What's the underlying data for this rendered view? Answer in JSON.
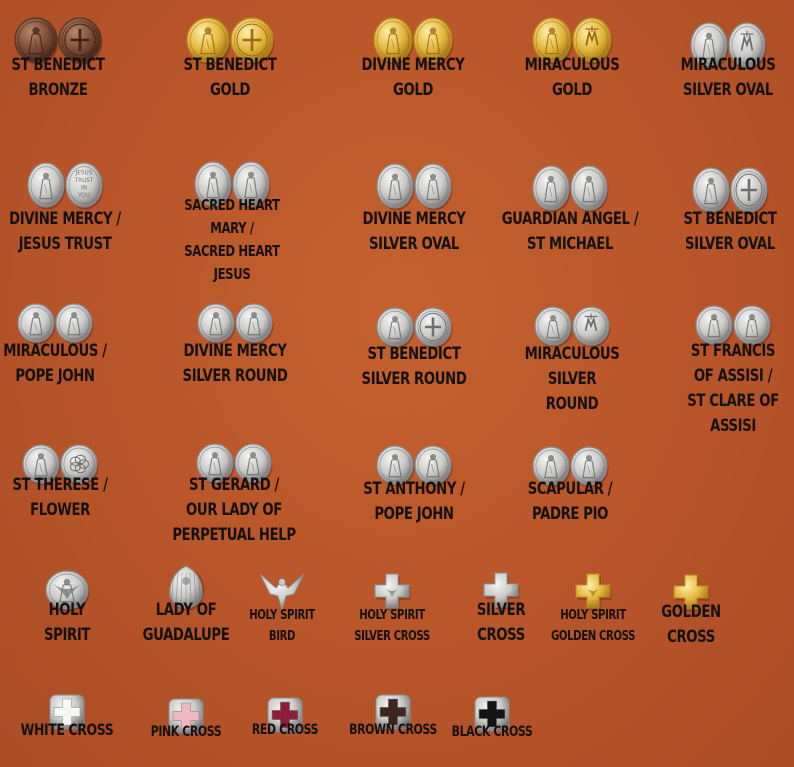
{
  "palette": {
    "background": "#b8552a",
    "silver": "#d9d9d9",
    "gold": "#e2b53c",
    "bronze": "#7a4a36",
    "white_enamel": "#f6f6f4",
    "pink_enamel": "#f2b6c2",
    "red_enamel": "#8d1e3a",
    "brown_enamel": "#3b2620",
    "black_enamel": "#141414"
  },
  "items": [
    {
      "lines": [
        "ST BENEDICT",
        "BRONZE"
      ],
      "kind": "pair",
      "finish": "bronze",
      "icons": [
        "st-benedict-medal-icon",
        "benedict-cross-medal-icon"
      ]
    },
    {
      "lines": [
        "ST BENEDICT",
        "GOLD"
      ],
      "kind": "pair",
      "finish": "gold",
      "icons": [
        "st-benedict-medal-icon",
        "benedict-cross-medal-icon"
      ]
    },
    {
      "lines": [
        "DIVINE MERCY",
        "GOLD"
      ],
      "kind": "pair",
      "finish": "gold",
      "icons": [
        "divine-mercy-medal-icon",
        "virgin-mary-medal-icon"
      ]
    },
    {
      "lines": [
        "MIRACULOUS",
        "GOLD"
      ],
      "kind": "pair",
      "finish": "gold",
      "icons": [
        "miraculous-medal-icon",
        "miraculous-reverse-medal-icon"
      ]
    },
    {
      "lines": [
        "MIRACULOUS",
        "SILVER OVAL"
      ],
      "kind": "pair",
      "finish": "silver",
      "icons": [
        "miraculous-medal-icon",
        "miraculous-reverse-medal-icon"
      ]
    },
    {
      "lines": [
        "DIVINE MERCY /",
        "JESUS TRUST"
      ],
      "kind": "pair",
      "finish": "silver",
      "icons": [
        "divine-mercy-medal-icon",
        "jesus-trust-text-medal-icon"
      ],
      "medal_text": [
        "JESUS",
        "TRUST",
        "IN",
        "YOU"
      ]
    },
    {
      "lines": [
        "SACRED HEART",
        "MARY /",
        "SACRED HEART",
        "JESUS"
      ],
      "kind": "pair",
      "finish": "silver",
      "icons": [
        "sacred-heart-mary-medal-icon",
        "sacred-heart-jesus-medal-icon"
      ]
    },
    {
      "lines": [
        "DIVINE MERCY",
        "SILVER OVAL"
      ],
      "kind": "pair",
      "finish": "silver",
      "icons": [
        "divine-mercy-medal-icon",
        "virgin-mary-medal-icon"
      ]
    },
    {
      "lines": [
        "GUARDIAN ANGEL /",
        "ST MICHAEL"
      ],
      "kind": "pair",
      "finish": "silver",
      "icons": [
        "guardian-angel-medal-icon",
        "st-michael-medal-icon"
      ]
    },
    {
      "lines": [
        "ST BENEDICT",
        "SILVER OVAL"
      ],
      "kind": "pair",
      "finish": "silver",
      "icons": [
        "st-benedict-medal-icon",
        "benedict-cross-medal-icon"
      ]
    },
    {
      "lines": [
        "MIRACULOUS /",
        "POPE JOHN"
      ],
      "kind": "pair",
      "finish": "silver",
      "icons": [
        "miraculous-medal-icon",
        "pope-john-medal-icon"
      ]
    },
    {
      "lines": [
        "DIVINE MERCY",
        "SILVER ROUND"
      ],
      "kind": "pair",
      "finish": "silver",
      "icons": [
        "divine-mercy-medal-icon",
        "virgin-mary-medal-icon"
      ]
    },
    {
      "lines": [
        "ST BENEDICT",
        "SILVER ROUND"
      ],
      "kind": "pair",
      "finish": "silver",
      "icons": [
        "st-benedict-medal-icon",
        "benedict-cross-medal-icon"
      ]
    },
    {
      "lines": [
        "MIRACULOUS",
        "SILVER",
        "ROUND"
      ],
      "kind": "pair",
      "finish": "silver",
      "icons": [
        "miraculous-medal-icon",
        "miraculous-reverse-medal-icon"
      ]
    },
    {
      "lines": [
        "ST FRANCIS",
        "OF ASSISI /",
        "ST CLARE OF",
        "ASSISI"
      ],
      "kind": "pair",
      "finish": "silver",
      "icons": [
        "st-francis-medal-icon",
        "st-clare-medal-icon"
      ]
    },
    {
      "lines": [
        "ST THERESE /",
        "FLOWER"
      ],
      "kind": "pair",
      "finish": "silver",
      "icons": [
        "st-therese-medal-icon",
        "rose-flower-medal-icon"
      ]
    },
    {
      "lines": [
        "ST GERARD /",
        "OUR LADY OF",
        "PERPETUAL HELP"
      ],
      "kind": "pair",
      "finish": "silver",
      "icons": [
        "st-gerard-medal-icon",
        "our-lady-perpetual-help-medal-icon"
      ]
    },
    {
      "lines": [
        "ST ANTHONY /",
        "POPE JOHN"
      ],
      "kind": "pair",
      "finish": "silver",
      "icons": [
        "st-anthony-medal-icon",
        "pope-john-medal-icon"
      ]
    },
    {
      "lines": [
        "SCAPULAR /",
        "PADRE PIO"
      ],
      "kind": "pair",
      "finish": "silver",
      "icons": [
        "scapular-medal-icon",
        "padre-pio-medal-icon"
      ]
    },
    {
      "lines": [
        "HOLY",
        "SPIRIT"
      ],
      "kind": "dove-medal",
      "finish": "silver",
      "icons": [
        "holy-spirit-dove-medal-icon"
      ]
    },
    {
      "lines": [
        "LADY OF",
        "GUADALUPE"
      ],
      "kind": "guadalupe",
      "finish": "silver",
      "icons": [
        "our-lady-guadalupe-bead-icon"
      ]
    },
    {
      "lines": [
        "HOLY SPIRIT",
        "BIRD"
      ],
      "kind": "dove",
      "finish": "silver",
      "icons": [
        "holy-spirit-bird-bead-icon"
      ]
    },
    {
      "lines": [
        "HOLY SPIRIT",
        "SILVER CROSS"
      ],
      "kind": "cross",
      "finish": "silver",
      "icons": [
        "holy-spirit-cross-bead-icon"
      ],
      "dove": true
    },
    {
      "lines": [
        "SILVER",
        "CROSS"
      ],
      "kind": "cross",
      "finish": "silver",
      "icons": [
        "silver-cross-bead-icon"
      ]
    },
    {
      "lines": [
        "HOLY SPIRIT",
        "GOLDEN CROSS"
      ],
      "kind": "cross",
      "finish": "gold",
      "icons": [
        "holy-spirit-golden-cross-bead-icon"
      ],
      "dove": true
    },
    {
      "lines": [
        "GOLDEN",
        "CROSS"
      ],
      "kind": "cross",
      "finish": "gold",
      "icons": [
        "golden-cross-bead-icon"
      ]
    },
    {
      "lines": [
        "WHITE CROSS"
      ],
      "kind": "enamel-cross",
      "finish": "white_enamel",
      "icons": [
        "white-cross-bead-icon"
      ]
    },
    {
      "lines": [
        "PINK CROSS"
      ],
      "kind": "enamel-cross",
      "finish": "pink_enamel",
      "icons": [
        "pink-cross-bead-icon"
      ]
    },
    {
      "lines": [
        "RED CROSS"
      ],
      "kind": "enamel-cross",
      "finish": "red_enamel",
      "icons": [
        "red-cross-bead-icon"
      ]
    },
    {
      "lines": [
        "BROWN CROSS"
      ],
      "kind": "enamel-cross",
      "finish": "brown_enamel",
      "icons": [
        "brown-cross-bead-icon"
      ]
    },
    {
      "lines": [
        "BLACK CROSS"
      ],
      "kind": "enamel-cross",
      "finish": "black_enamel",
      "icons": [
        "black-cross-bead-icon"
      ]
    }
  ]
}
